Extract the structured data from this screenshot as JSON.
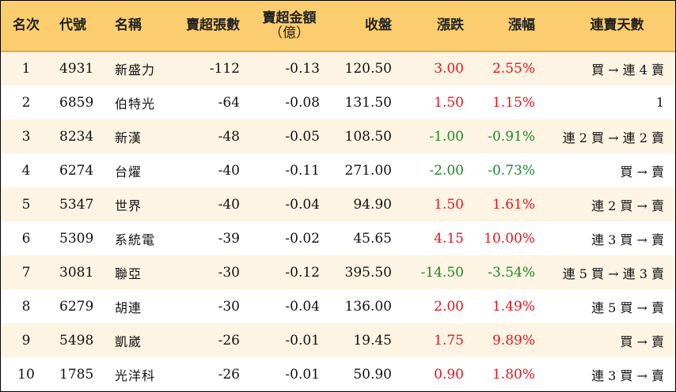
{
  "headers": {
    "rank": "名次",
    "code": "代號",
    "name": "名稱",
    "sell_shares": "賣超張數",
    "sell_amount_line1": "賣超金額",
    "sell_amount_line2": "（億）",
    "close": "收盤",
    "change": "漲跌",
    "change_pct": "漲幅",
    "streak": "連賣天數"
  },
  "rows": [
    {
      "rank": "1",
      "code": "4931",
      "name": "新盛力",
      "sell_shares": "-112",
      "sell_amount": "-0.13",
      "close": "120.50",
      "change": "3.00",
      "change_pct": "2.55%",
      "direction": "up",
      "streak": "買 → 連 4 賣"
    },
    {
      "rank": "2",
      "code": "6859",
      "name": "伯特光",
      "sell_shares": "-64",
      "sell_amount": "-0.08",
      "close": "131.50",
      "change": "1.50",
      "change_pct": "1.15%",
      "direction": "up",
      "streak": "1"
    },
    {
      "rank": "3",
      "code": "8234",
      "name": "新漢",
      "sell_shares": "-48",
      "sell_amount": "-0.05",
      "close": "108.50",
      "change": "-1.00",
      "change_pct": "-0.91%",
      "direction": "down",
      "streak": "連 2 買 → 連 2 賣"
    },
    {
      "rank": "4",
      "code": "6274",
      "name": "台燿",
      "sell_shares": "-40",
      "sell_amount": "-0.11",
      "close": "271.00",
      "change": "-2.00",
      "change_pct": "-0.73%",
      "direction": "down",
      "streak": "買 → 賣"
    },
    {
      "rank": "5",
      "code": "5347",
      "name": "世界",
      "sell_shares": "-40",
      "sell_amount": "-0.04",
      "close": "94.90",
      "change": "1.50",
      "change_pct": "1.61%",
      "direction": "up",
      "streak": "連 2 買 → 賣"
    },
    {
      "rank": "6",
      "code": "5309",
      "name": "系統電",
      "sell_shares": "-39",
      "sell_amount": "-0.02",
      "close": "45.65",
      "change": "4.15",
      "change_pct": "10.00%",
      "direction": "up",
      "streak": "連 3 買 → 賣"
    },
    {
      "rank": "7",
      "code": "3081",
      "name": "聯亞",
      "sell_shares": "-30",
      "sell_amount": "-0.12",
      "close": "395.50",
      "change": "-14.50",
      "change_pct": "-3.54%",
      "direction": "down",
      "streak": "連 5 買 → 連 3 賣"
    },
    {
      "rank": "8",
      "code": "6279",
      "name": "胡連",
      "sell_shares": "-30",
      "sell_amount": "-0.04",
      "close": "136.00",
      "change": "2.00",
      "change_pct": "1.49%",
      "direction": "up",
      "streak": "連 5 買 → 賣"
    },
    {
      "rank": "9",
      "code": "5498",
      "name": "凱崴",
      "sell_shares": "-26",
      "sell_amount": "-0.01",
      "close": "19.45",
      "change": "1.75",
      "change_pct": "9.89%",
      "direction": "up",
      "streak": "買 → 賣"
    },
    {
      "rank": "10",
      "code": "1785",
      "name": "光洋科",
      "sell_shares": "-26",
      "sell_amount": "-0.01",
      "close": "50.90",
      "change": "0.90",
      "change_pct": "1.80%",
      "direction": "up",
      "streak": "連 3 買 → 賣"
    }
  ],
  "colors": {
    "header_bg": "#fbcd6e",
    "row_alt_bg": "#fdf4e3",
    "up": "#e8141c",
    "down": "#1a8a2a"
  }
}
